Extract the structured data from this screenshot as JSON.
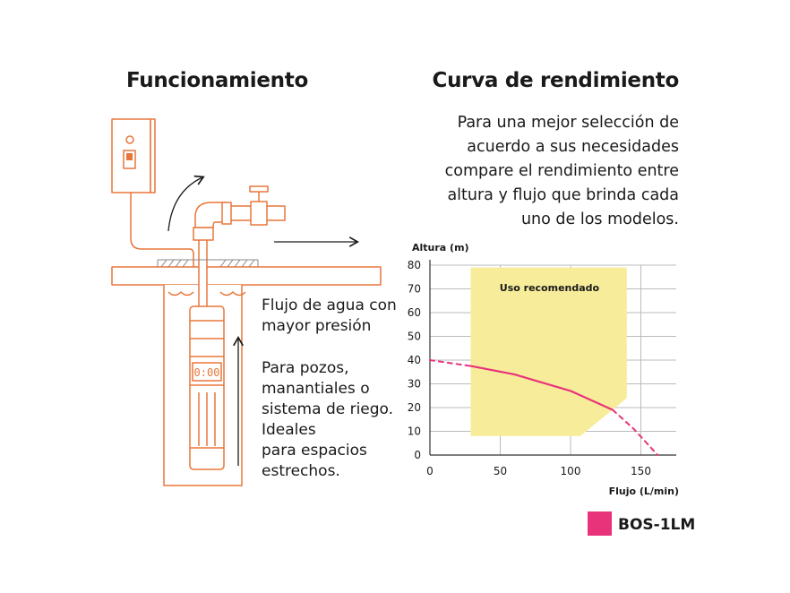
{
  "left_title": "Funcionamiento",
  "right_title": "Curva de rendimiento",
  "description_lines": [
    "Para una mejor selección de",
    "acuerdo a sus necesidades",
    "compare el rendimiento entre",
    "altura y flujo que brinda cada",
    "uno de los modelos."
  ],
  "flow_text_lines": [
    "Flujo de agua con",
    "mayor presión"
  ],
  "use_text_lines": [
    "Para pozos,",
    "manantiales o",
    "sistema de riego.",
    "Ideales",
    "para espacios",
    "estrechos."
  ],
  "pump_display": "0:00",
  "colors": {
    "line_orange": "#e8763a",
    "curve_pink": "#e8337a",
    "region_yellow": "#f7ec9a",
    "grid": "#bbbbbb",
    "text": "#1a1a1a"
  },
  "chart_data": {
    "type": "line",
    "ylabel": "Altura (m)",
    "xlabel": "Flujo (L/min)",
    "xlim": [
      0,
      175
    ],
    "ylim": [
      0,
      80
    ],
    "x_ticks": [
      0,
      50,
      100,
      150
    ],
    "y_ticks": [
      0,
      10,
      20,
      30,
      40,
      50,
      60,
      70,
      80
    ],
    "grid": true,
    "region_label": "Uso recomendado",
    "recommended_region": {
      "polygon": [
        [
          29,
          79
        ],
        [
          140,
          79
        ],
        [
          140,
          24
        ],
        [
          107,
          8
        ],
        [
          29,
          8
        ]
      ]
    },
    "series": [
      {
        "name": "BOS-1LM",
        "points": [
          {
            "x": 0,
            "y": 40,
            "style": "dashed"
          },
          {
            "x": 29,
            "y": 37.5,
            "style": "solid"
          },
          {
            "x": 60,
            "y": 34,
            "style": "solid"
          },
          {
            "x": 100,
            "y": 27,
            "style": "solid"
          },
          {
            "x": 130,
            "y": 19,
            "style": "solid"
          },
          {
            "x": 145,
            "y": 11,
            "style": "dashed"
          },
          {
            "x": 162,
            "y": 0,
            "style": "dashed"
          }
        ]
      }
    ],
    "legend": {
      "position": "bottom-right"
    }
  }
}
